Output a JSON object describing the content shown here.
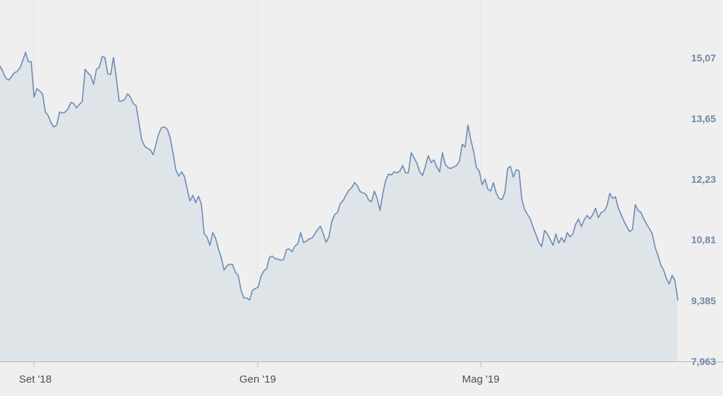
{
  "chart_data": {
    "type": "area",
    "title": "",
    "xlabel": "",
    "ylabel": "",
    "ylim": [
      7.963,
      16.0
    ],
    "x_ticks": [
      "Set '18",
      "Gen '19",
      "Mag '19"
    ],
    "y_ticks": [
      "15,07",
      "13,65",
      "12,23",
      "10,81",
      "9,385",
      "7,963"
    ],
    "y_tick_values": [
      15.07,
      13.65,
      12.23,
      10.81,
      9.385,
      7.963
    ],
    "grid": "vertical dotted",
    "series": [
      {
        "values": [
          14.88,
          14.75,
          14.6,
          14.55,
          14.62,
          14.72,
          14.75,
          14.83,
          15.0,
          15.2,
          14.98,
          14.98,
          14.15,
          14.35,
          14.3,
          14.22,
          13.8,
          13.72,
          13.55,
          13.45,
          13.5,
          13.8,
          13.78,
          13.8,
          13.88,
          14.03,
          14.0,
          13.9,
          13.98,
          14.05,
          14.8,
          14.72,
          14.65,
          14.45,
          14.8,
          14.85,
          15.1,
          15.08,
          14.7,
          14.68,
          15.08,
          14.62,
          14.06,
          14.06,
          14.1,
          14.23,
          14.15,
          14.0,
          13.95,
          13.55,
          13.15,
          13.0,
          12.95,
          12.92,
          12.8,
          13.05,
          13.3,
          13.44,
          13.45,
          13.4,
          13.2,
          12.85,
          12.45,
          12.3,
          12.4,
          12.3,
          12.0,
          11.72,
          11.85,
          11.68,
          11.83,
          11.65,
          10.95,
          10.88,
          10.68,
          10.98,
          10.85,
          10.6,
          10.4,
          10.1,
          10.2,
          10.24,
          10.23,
          10.05,
          9.98,
          9.63,
          9.45,
          9.45,
          9.4,
          9.62,
          9.67,
          9.7,
          9.95,
          10.08,
          10.13,
          10.4,
          10.43,
          10.37,
          10.36,
          10.33,
          10.35,
          10.58,
          10.6,
          10.53,
          10.66,
          10.72,
          10.98,
          10.75,
          10.78,
          10.83,
          10.85,
          10.95,
          11.05,
          11.13,
          10.95,
          10.75,
          10.88,
          11.25,
          11.4,
          11.45,
          11.66,
          11.73,
          11.86,
          11.97,
          12.03,
          12.15,
          12.08,
          11.94,
          11.91,
          11.88,
          11.74,
          11.7,
          11.95,
          11.78,
          11.5,
          11.9,
          12.2,
          12.35,
          12.33,
          12.4,
          12.38,
          12.42,
          12.55,
          12.38,
          12.38,
          12.85,
          12.73,
          12.6,
          12.4,
          12.32,
          12.53,
          12.78,
          12.62,
          12.68,
          12.52,
          12.4,
          12.85,
          12.58,
          12.5,
          12.48,
          12.52,
          12.55,
          12.65,
          13.05,
          12.98,
          13.5,
          13.15,
          12.88,
          12.5,
          12.42,
          12.1,
          12.23,
          12.0,
          11.95,
          12.15,
          11.9,
          11.78,
          11.75,
          11.92,
          12.48,
          12.53,
          12.28,
          12.45,
          12.43,
          11.75,
          11.52,
          11.4,
          11.3,
          11.1,
          10.93,
          10.75,
          10.65,
          11.03,
          10.95,
          10.82,
          10.68,
          10.95,
          10.73,
          10.86,
          10.75,
          10.98,
          10.88,
          10.95,
          11.18,
          11.3,
          11.12,
          11.28,
          11.38,
          11.3,
          11.4,
          11.55,
          11.33,
          11.45,
          11.48,
          11.6,
          11.9,
          11.78,
          11.82,
          11.56,
          11.4,
          11.25,
          11.12,
          11.0,
          11.05,
          11.63,
          11.5,
          11.45,
          11.3,
          11.18,
          11.07,
          10.95,
          10.63,
          10.45,
          10.22,
          10.1,
          9.9,
          9.78,
          9.98,
          9.85,
          9.4
        ]
      }
    ],
    "colors": {
      "line": "#6b8bb5",
      "fill": "#dfe4e9",
      "tick_y": "#6f86a8",
      "tick_x": "#4d4d4d",
      "grid": "#c4c4c4",
      "axis": "#b9b9b9"
    }
  }
}
